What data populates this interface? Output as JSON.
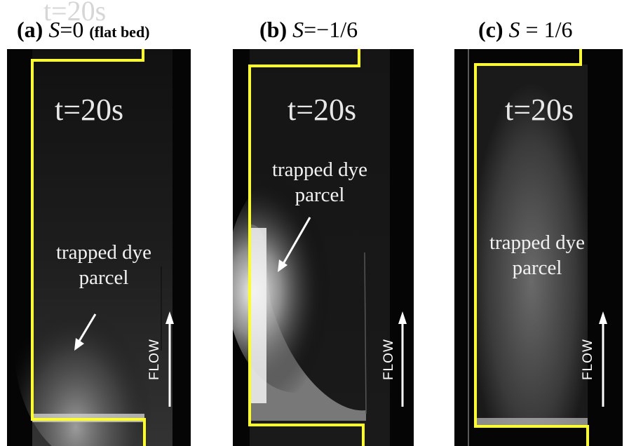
{
  "panels": [
    {
      "label": "(a)",
      "symbol": "S",
      "relation": "=0",
      "note": "(flat bed)",
      "time": "t=20s",
      "annotation_line1": "trapped dye",
      "annotation_line2": "parcel",
      "flow": "FLOW"
    },
    {
      "label": "(b)",
      "symbol": "S",
      "relation": "=−1/6",
      "note": "",
      "time": "t=20s",
      "annotation_line1": "trapped dye",
      "annotation_line2": "parcel",
      "flow": "FLOW"
    },
    {
      "label": "(c)",
      "symbol": "S",
      "relation": " = 1/6",
      "note": "",
      "time": "t=20s",
      "annotation_line1": "trapped dye",
      "annotation_line2": "parcel",
      "flow": "FLOW"
    }
  ],
  "overlay_time": "t=20s",
  "colors": {
    "outline": "#ffff22",
    "background": "#050505",
    "text": "#f2f2f2"
  }
}
